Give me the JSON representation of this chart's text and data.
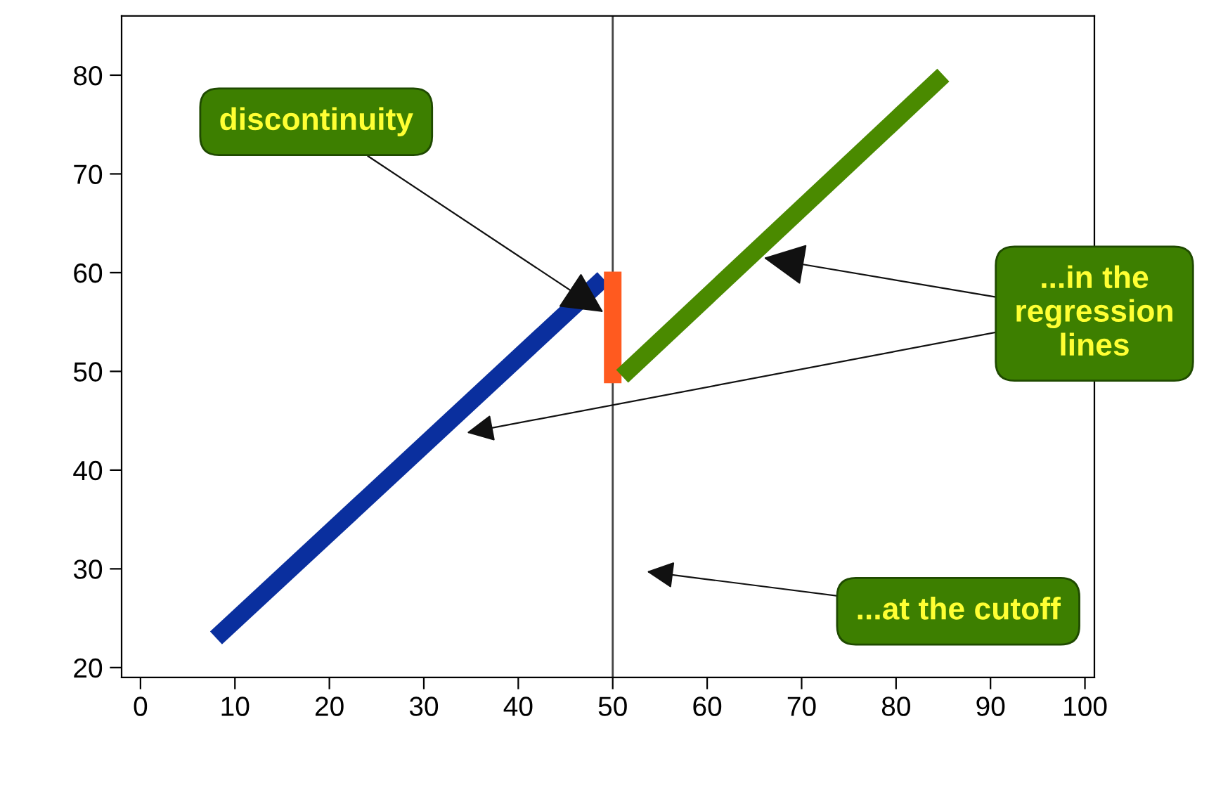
{
  "chart_data": {
    "type": "line",
    "series": [
      {
        "color": "#0a2f9e",
        "x": [
          8,
          49
        ],
        "values": [
          23,
          59.4
        ]
      },
      {
        "color": "#ff5a1f",
        "x": [
          50,
          50
        ],
        "values": [
          48.8,
          60.1
        ]
      },
      {
        "color": "#4a8a00",
        "x": [
          51,
          85
        ],
        "values": [
          49.5,
          80
        ]
      }
    ],
    "xlim": [
      -2,
      101
    ],
    "ylim": [
      19,
      86
    ],
    "xticks": [
      0,
      10,
      20,
      30,
      40,
      50,
      60,
      70,
      80,
      90,
      100
    ],
    "yticks": [
      20,
      30,
      40,
      50,
      60,
      70,
      80
    ],
    "ref_lines": [
      {
        "axis": "x",
        "value": 50,
        "color": "#444444"
      }
    ],
    "annotations": [
      {
        "text": "discontinuity",
        "x": 49,
        "y": 56
      },
      {
        "text": "...in the\nregression\nlines",
        "x": 66,
        "y": 61.5
      },
      "...at the cutoff"
    ],
    "grid": false,
    "marker": "none",
    "line_style": "solid"
  }
}
